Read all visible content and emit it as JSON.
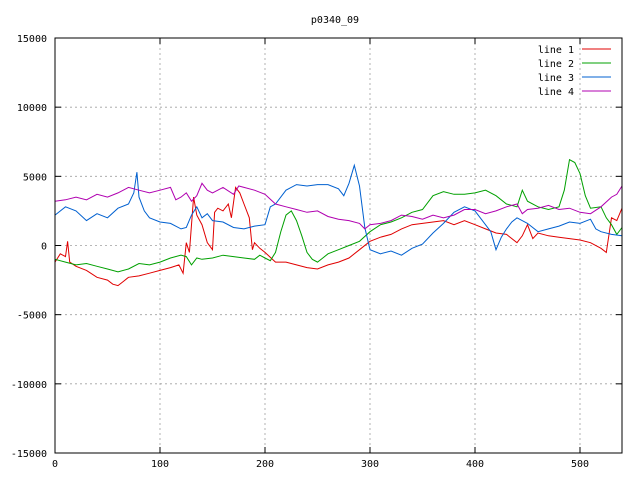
{
  "chart_data": {
    "type": "line",
    "title": "p0340_09",
    "xlabel": "",
    "ylabel": "",
    "xlim": [
      0,
      540
    ],
    "ylim": [
      -15000,
      15000
    ],
    "x_ticks": [
      0,
      100,
      200,
      300,
      400,
      500
    ],
    "y_ticks": [
      -15000,
      -10000,
      -5000,
      0,
      5000,
      10000,
      15000
    ],
    "grid": true,
    "legend_position": "top-right",
    "series": [
      {
        "name": "line 1",
        "color": "#e00000",
        "points": [
          [
            0,
            -1200
          ],
          [
            5,
            -600
          ],
          [
            10,
            -800
          ],
          [
            12,
            300
          ],
          [
            14,
            -1200
          ],
          [
            20,
            -1500
          ],
          [
            30,
            -1800
          ],
          [
            40,
            -2300
          ],
          [
            50,
            -2500
          ],
          [
            55,
            -2800
          ],
          [
            60,
            -2900
          ],
          [
            65,
            -2600
          ],
          [
            70,
            -2300
          ],
          [
            80,
            -2200
          ],
          [
            90,
            -2000
          ],
          [
            100,
            -1800
          ],
          [
            110,
            -1600
          ],
          [
            118,
            -1400
          ],
          [
            122,
            -2000
          ],
          [
            125,
            200
          ],
          [
            128,
            -500
          ],
          [
            132,
            3500
          ],
          [
            135,
            2200
          ],
          [
            140,
            1500
          ],
          [
            145,
            200
          ],
          [
            150,
            -300
          ],
          [
            152,
            2400
          ],
          [
            155,
            2700
          ],
          [
            160,
            2500
          ],
          [
            165,
            3000
          ],
          [
            168,
            2000
          ],
          [
            172,
            4200
          ],
          [
            176,
            3800
          ],
          [
            180,
            3000
          ],
          [
            185,
            2000
          ],
          [
            188,
            -300
          ],
          [
            190,
            200
          ],
          [
            195,
            -200
          ],
          [
            200,
            -500
          ],
          [
            210,
            -1200
          ],
          [
            220,
            -1200
          ],
          [
            230,
            -1400
          ],
          [
            240,
            -1600
          ],
          [
            250,
            -1700
          ],
          [
            260,
            -1400
          ],
          [
            270,
            -1200
          ],
          [
            280,
            -900
          ],
          [
            290,
            -300
          ],
          [
            300,
            300
          ],
          [
            310,
            600
          ],
          [
            320,
            800
          ],
          [
            330,
            1200
          ],
          [
            340,
            1500
          ],
          [
            350,
            1600
          ],
          [
            360,
            1700
          ],
          [
            370,
            1800
          ],
          [
            380,
            1500
          ],
          [
            390,
            1800
          ],
          [
            400,
            1500
          ],
          [
            410,
            1200
          ],
          [
            420,
            900
          ],
          [
            430,
            800
          ],
          [
            440,
            200
          ],
          [
            445,
            700
          ],
          [
            450,
            1500
          ],
          [
            455,
            500
          ],
          [
            460,
            900
          ],
          [
            470,
            700
          ],
          [
            480,
            600
          ],
          [
            490,
            500
          ],
          [
            500,
            400
          ],
          [
            510,
            200
          ],
          [
            520,
            -200
          ],
          [
            525,
            -500
          ],
          [
            530,
            2000
          ],
          [
            535,
            1800
          ],
          [
            540,
            2700
          ]
        ]
      },
      {
        "name": "line 2",
        "color": "#00a000",
        "points": [
          [
            0,
            -1000
          ],
          [
            10,
            -1200
          ],
          [
            20,
            -1400
          ],
          [
            30,
            -1300
          ],
          [
            40,
            -1500
          ],
          [
            50,
            -1700
          ],
          [
            60,
            -1900
          ],
          [
            70,
            -1700
          ],
          [
            80,
            -1300
          ],
          [
            90,
            -1400
          ],
          [
            100,
            -1200
          ],
          [
            110,
            -900
          ],
          [
            120,
            -700
          ],
          [
            125,
            -800
          ],
          [
            130,
            -1400
          ],
          [
            135,
            -900
          ],
          [
            140,
            -1000
          ],
          [
            150,
            -900
          ],
          [
            160,
            -700
          ],
          [
            170,
            -800
          ],
          [
            180,
            -900
          ],
          [
            190,
            -1000
          ],
          [
            195,
            -700
          ],
          [
            200,
            -900
          ],
          [
            205,
            -1100
          ],
          [
            210,
            -500
          ],
          [
            215,
            1000
          ],
          [
            220,
            2200
          ],
          [
            225,
            2500
          ],
          [
            230,
            1800
          ],
          [
            235,
            700
          ],
          [
            240,
            -500
          ],
          [
            245,
            -1000
          ],
          [
            250,
            -1200
          ],
          [
            255,
            -900
          ],
          [
            260,
            -600
          ],
          [
            270,
            -300
          ],
          [
            280,
            0
          ],
          [
            290,
            300
          ],
          [
            300,
            1000
          ],
          [
            310,
            1500
          ],
          [
            320,
            1700
          ],
          [
            330,
            2000
          ],
          [
            340,
            2400
          ],
          [
            350,
            2600
          ],
          [
            360,
            3600
          ],
          [
            370,
            3900
          ],
          [
            380,
            3700
          ],
          [
            390,
            3700
          ],
          [
            400,
            3800
          ],
          [
            410,
            4000
          ],
          [
            420,
            3600
          ],
          [
            430,
            3000
          ],
          [
            440,
            2800
          ],
          [
            445,
            4000
          ],
          [
            450,
            3200
          ],
          [
            460,
            2800
          ],
          [
            470,
            2600
          ],
          [
            480,
            2800
          ],
          [
            485,
            4000
          ],
          [
            490,
            6200
          ],
          [
            495,
            6000
          ],
          [
            500,
            5200
          ],
          [
            505,
            3600
          ],
          [
            510,
            2700
          ],
          [
            520,
            2800
          ],
          [
            525,
            2000
          ],
          [
            530,
            1500
          ],
          [
            535,
            800
          ],
          [
            540,
            1300
          ]
        ]
      },
      {
        "name": "line 3",
        "color": "#0060d0",
        "points": [
          [
            0,
            2200
          ],
          [
            10,
            2800
          ],
          [
            20,
            2500
          ],
          [
            30,
            1800
          ],
          [
            40,
            2300
          ],
          [
            50,
            2000
          ],
          [
            60,
            2700
          ],
          [
            70,
            3000
          ],
          [
            75,
            3800
          ],
          [
            78,
            5300
          ],
          [
            80,
            3500
          ],
          [
            85,
            2500
          ],
          [
            90,
            2000
          ],
          [
            100,
            1700
          ],
          [
            110,
            1600
          ],
          [
            120,
            1200
          ],
          [
            125,
            1300
          ],
          [
            130,
            2200
          ],
          [
            135,
            2800
          ],
          [
            140,
            2000
          ],
          [
            145,
            2300
          ],
          [
            150,
            1800
          ],
          [
            160,
            1700
          ],
          [
            170,
            1300
          ],
          [
            180,
            1200
          ],
          [
            190,
            1400
          ],
          [
            200,
            1500
          ],
          [
            205,
            2800
          ],
          [
            210,
            3000
          ],
          [
            220,
            4000
          ],
          [
            230,
            4400
          ],
          [
            240,
            4300
          ],
          [
            250,
            4400
          ],
          [
            260,
            4400
          ],
          [
            270,
            4100
          ],
          [
            275,
            3600
          ],
          [
            280,
            4500
          ],
          [
            285,
            5800
          ],
          [
            290,
            4300
          ],
          [
            295,
            1300
          ],
          [
            300,
            -300
          ],
          [
            310,
            -600
          ],
          [
            320,
            -400
          ],
          [
            330,
            -700
          ],
          [
            340,
            -200
          ],
          [
            350,
            100
          ],
          [
            360,
            900
          ],
          [
            370,
            1600
          ],
          [
            380,
            2400
          ],
          [
            390,
            2800
          ],
          [
            400,
            2500
          ],
          [
            410,
            1500
          ],
          [
            415,
            1000
          ],
          [
            420,
            -300
          ],
          [
            425,
            600
          ],
          [
            430,
            1200
          ],
          [
            435,
            1700
          ],
          [
            440,
            2000
          ],
          [
            450,
            1600
          ],
          [
            460,
            1000
          ],
          [
            470,
            1200
          ],
          [
            480,
            1400
          ],
          [
            490,
            1700
          ],
          [
            500,
            1600
          ],
          [
            510,
            1900
          ],
          [
            515,
            1200
          ],
          [
            520,
            1000
          ],
          [
            530,
            800
          ],
          [
            540,
            700
          ]
        ]
      },
      {
        "name": "line 4",
        "color": "#b000b0",
        "points": [
          [
            0,
            3200
          ],
          [
            10,
            3300
          ],
          [
            20,
            3500
          ],
          [
            30,
            3300
          ],
          [
            40,
            3700
          ],
          [
            50,
            3500
          ],
          [
            60,
            3800
          ],
          [
            70,
            4200
          ],
          [
            80,
            4000
          ],
          [
            90,
            3800
          ],
          [
            100,
            4000
          ],
          [
            110,
            4200
          ],
          [
            115,
            3300
          ],
          [
            120,
            3500
          ],
          [
            125,
            3800
          ],
          [
            130,
            3200
          ],
          [
            135,
            3600
          ],
          [
            140,
            4500
          ],
          [
            145,
            4000
          ],
          [
            150,
            3800
          ],
          [
            160,
            4200
          ],
          [
            170,
            3700
          ],
          [
            175,
            4300
          ],
          [
            180,
            4200
          ],
          [
            190,
            4000
          ],
          [
            200,
            3700
          ],
          [
            210,
            3000
          ],
          [
            220,
            2800
          ],
          [
            230,
            2600
          ],
          [
            240,
            2400
          ],
          [
            250,
            2500
          ],
          [
            260,
            2100
          ],
          [
            270,
            1900
          ],
          [
            280,
            1800
          ],
          [
            290,
            1600
          ],
          [
            295,
            1200
          ],
          [
            300,
            1500
          ],
          [
            310,
            1600
          ],
          [
            320,
            1800
          ],
          [
            330,
            2200
          ],
          [
            340,
            2100
          ],
          [
            350,
            1900
          ],
          [
            360,
            2200
          ],
          [
            370,
            2000
          ],
          [
            380,
            2200
          ],
          [
            390,
            2600
          ],
          [
            400,
            2600
          ],
          [
            410,
            2300
          ],
          [
            420,
            2500
          ],
          [
            430,
            2800
          ],
          [
            440,
            3000
          ],
          [
            445,
            2300
          ],
          [
            450,
            2600
          ],
          [
            460,
            2700
          ],
          [
            470,
            2900
          ],
          [
            480,
            2600
          ],
          [
            490,
            2700
          ],
          [
            500,
            2400
          ],
          [
            510,
            2300
          ],
          [
            520,
            2800
          ],
          [
            530,
            3500
          ],
          [
            535,
            3700
          ],
          [
            540,
            4300
          ]
        ]
      }
    ]
  }
}
